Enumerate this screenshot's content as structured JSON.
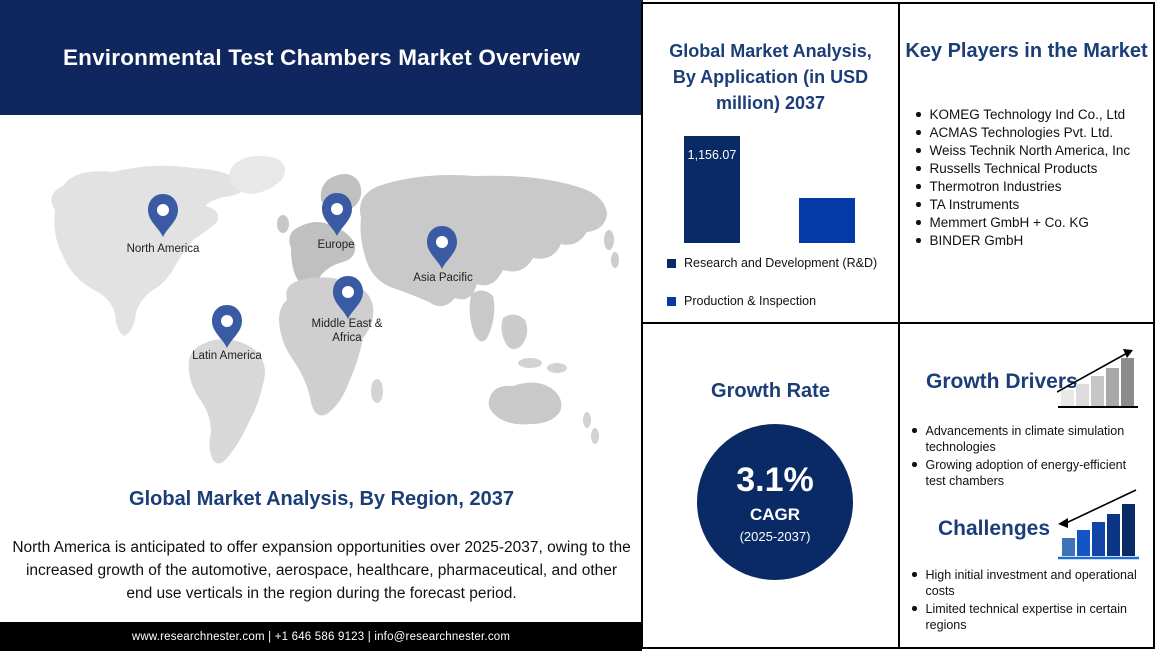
{
  "header": {
    "title": "Environmental Test Chambers Market Overview"
  },
  "map": {
    "regions": [
      {
        "label": "North America"
      },
      {
        "label": "Europe"
      },
      {
        "label": "Asia Pacific"
      },
      {
        "label": "Middle East & Africa"
      },
      {
        "label": "Latin America"
      }
    ]
  },
  "region_section": {
    "heading": "Global Market Analysis, By Region, 2037",
    "body": "North America is anticipated to offer expansion opportunities over 2025-2037, owing to the increased growth of the automotive, aerospace, healthcare, pharmaceutical, and other end use verticals in the region during the forecast period."
  },
  "footer": {
    "text": "www.researchnester.com | +1 646 586 9123 | info@researchnester.com"
  },
  "application_section": {
    "heading": "Global Market Analysis, By Application (in USD million) 2037",
    "bar_value_label": "1,156.07"
  },
  "chart_data": {
    "type": "bar",
    "title": "Global Market Analysis, By Application (in USD million) 2037",
    "categories": [
      "Research and Development (R&D)",
      "Production & Inspection"
    ],
    "values": [
      1156.07,
      481
    ],
    "value_labels": [
      "1,156.07",
      ""
    ],
    "colors": [
      "#0a2a66",
      "#0539a6"
    ],
    "ylabel": "USD million",
    "legend_position": "bottom",
    "grid": false
  },
  "growth_rate": {
    "heading": "Growth Rate",
    "value": "3.1%",
    "label": "CAGR",
    "period": "(2025-2037)"
  },
  "key_players": {
    "heading": "Key Players in the Market",
    "items": [
      "KOMEG Technology Ind Co., Ltd",
      "ACMAS Technologies Pvt. Ltd.",
      "Weiss Technik North America, Inc",
      "Russells Technical Products",
      "Thermotron Industries",
      "TA Instruments",
      "Memmert GmbH + Co. KG",
      "BINDER GmbH"
    ]
  },
  "growth_drivers": {
    "heading": "Growth Drivers",
    "items": [
      "Advancements in climate simulation technologies",
      "Growing adoption of energy-efficient test chambers"
    ]
  },
  "challenges": {
    "heading": "Challenges",
    "items": [
      "High initial investment and operational costs",
      "Limited technical expertise in certain regions"
    ]
  },
  "colors": {
    "header_navy": "#10265f",
    "heading_navy": "#1c3e78",
    "bar_dark_navy": "#0a2a66",
    "bar_blue": "#0539a6",
    "circle_navy": "#0a2a66",
    "pin_blue": "#3a5ba3",
    "footer_black": "#000000"
  }
}
